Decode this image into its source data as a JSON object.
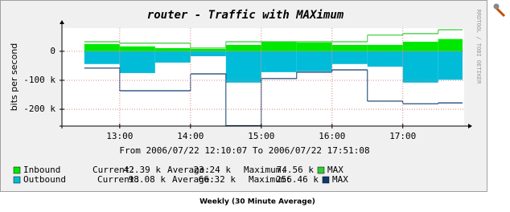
{
  "chart_data": {
    "type": "step",
    "title": "router - Traffic with MAXimum",
    "y_label": "bits per second",
    "side_text": "RRDTOOL / TOBI OETIKER",
    "period_text": "From 2006/07/22 12:10:07 To 2006/07/22 17:51:08",
    "caption": "Weekly (30 Minute Average)",
    "x": [
      750,
      780,
      810,
      840,
      870,
      900,
      930,
      960,
      990,
      1020,
      1050
    ],
    "xlim": [
      731,
      1072
    ],
    "xticks": [
      {
        "value": 780,
        "label": "13:00"
      },
      {
        "value": 840,
        "label": "14:00"
      },
      {
        "value": 900,
        "label": "15:00"
      },
      {
        "value": 960,
        "label": "16:00"
      },
      {
        "value": 1020,
        "label": "17:00"
      }
    ],
    "ylim": [
      -258000,
      80000
    ],
    "yticks": [
      0,
      {
        "value": -100000,
        "label": "-100 k"
      },
      {
        "value": -200000,
        "label": "-200 k"
      }
    ],
    "grid": true,
    "series": [
      {
        "name": "Inbound",
        "kind": "area",
        "color": "#00e800",
        "values": [
          25000,
          17000,
          11000,
          8000,
          22000,
          33000,
          30000,
          22000,
          22000,
          33000,
          42390
        ],
        "stats": [
          {
            "label": "Current:",
            "value": "42.39 k"
          },
          {
            "label": "Average:",
            "value": "23.24 k"
          },
          {
            "label": "Maximum:",
            "value": "74.56 k"
          }
        ]
      },
      {
        "name": "MAX",
        "kind": "line",
        "color": "#33cc33",
        "values": [
          33000,
          28000,
          28000,
          11000,
          33000,
          33000,
          33000,
          33000,
          56000,
          61000,
          74560
        ]
      },
      {
        "name": "Outbound",
        "kind": "area",
        "color": "#00bcd8",
        "values": [
          -44000,
          -75000,
          -39000,
          -17000,
          -108000,
          -72000,
          -69000,
          -44000,
          -53000,
          -108000,
          -98080
        ],
        "stats": [
          {
            "label": "Current:",
            "value": "98.08 k"
          },
          {
            "label": "Average:",
            "value": "66.32 k"
          },
          {
            "label": "Maximum:",
            "value": "256.46 k"
          }
        ]
      },
      {
        "name": "MAX",
        "kind": "line",
        "color": "#0b3a6e",
        "values": [
          -58000,
          -136000,
          -136000,
          -78000,
          -256460,
          -94000,
          -72000,
          -64000,
          -172000,
          -181000,
          -178000
        ]
      }
    ]
  }
}
